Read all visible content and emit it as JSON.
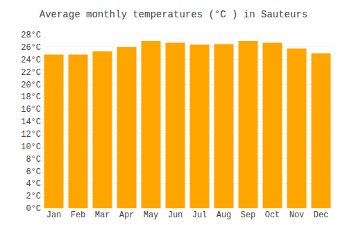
{
  "chart_data": {
    "type": "bar",
    "title": "Average monthly temperatures (°C ) in Sauteurs",
    "categories": [
      "Jan",
      "Feb",
      "Mar",
      "Apr",
      "May",
      "Jun",
      "Jul",
      "Aug",
      "Sep",
      "Oct",
      "Nov",
      "Dec"
    ],
    "values": [
      24.8,
      24.8,
      25.3,
      26.0,
      27.0,
      26.7,
      26.4,
      26.5,
      27.0,
      26.7,
      25.8,
      25.0
    ],
    "color": "#FFA500",
    "ylim": [
      0,
      28
    ],
    "yticks": [
      {
        "value": 0,
        "label": "0°C"
      },
      {
        "value": 2,
        "label": "2°C"
      },
      {
        "value": 4,
        "label": "4°C"
      },
      {
        "value": 6,
        "label": "6°C"
      },
      {
        "value": 8,
        "label": "8°C"
      },
      {
        "value": 10,
        "label": "10°C"
      },
      {
        "value": 12,
        "label": "12°C"
      },
      {
        "value": 14,
        "label": "14°C"
      },
      {
        "value": 16,
        "label": "16°C"
      },
      {
        "value": 18,
        "label": "18°C"
      },
      {
        "value": 20,
        "label": "20°C"
      },
      {
        "value": 22,
        "label": "22°C"
      },
      {
        "value": 24,
        "label": "24°C"
      },
      {
        "value": 26,
        "label": "26°C"
      },
      {
        "value": 28,
        "label": "28°C"
      }
    ],
    "grid": true
  }
}
